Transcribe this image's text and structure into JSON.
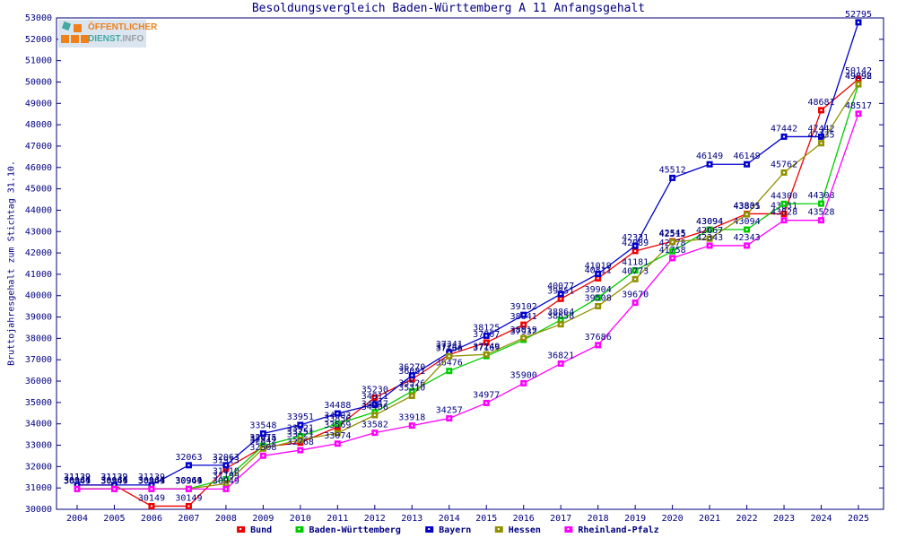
{
  "title": "Besoldungsvergleich Baden-Württemberg A 11 Anfangsgehalt",
  "y_axis_title": "Bruttojahresgehalt zum Stichtag 31.10.",
  "logo": {
    "line1": "ÖFFENTLICHER",
    "line2_main": "DIENST",
    "line2_suffix": ".INFO",
    "orange": "#f08019",
    "teal": "#45a8a2"
  },
  "colors": {
    "axis": "#000080",
    "label_text": "#000080",
    "background": "#ffffff"
  },
  "chart_data": {
    "type": "line",
    "x": [
      2004,
      2005,
      2006,
      2007,
      2008,
      2009,
      2010,
      2011,
      2012,
      2013,
      2014,
      2015,
      2016,
      2017,
      2018,
      2019,
      2020,
      2021,
      2022,
      2023,
      2024,
      2025
    ],
    "ylim": [
      30000,
      53000
    ],
    "ytick_step": 1000,
    "grid": false,
    "legend_position": "bottom",
    "series": [
      {
        "name": "Bund",
        "color": "#ee0000",
        "values": [
          31132,
          31132,
          30149,
          30149,
          31913,
          32914,
          33121,
          33856,
          35230,
          36081,
          37241,
          37807,
          38641,
          39851,
          40811,
          42089,
          42545,
          43094,
          43831,
          43831,
          48681,
          50142
        ]
      },
      {
        "name": "Baden-Württemberg",
        "color": "#00cc00",
        "values": [
          30964,
          30964,
          30964,
          30964,
          31410,
          32975,
          33421,
          34003,
          34547,
          35526,
          36476,
          37169,
          37932,
          38864,
          39904,
          41181,
          42078,
          43094,
          43094,
          44300,
          44308,
          49892
        ]
      },
      {
        "name": "Bayern",
        "color": "#0000cc",
        "values": [
          31139,
          31139,
          31139,
          32063,
          32063,
          33548,
          33951,
          34488,
          34911,
          36270,
          37341,
          38125,
          39102,
          40077,
          41019,
          42331,
          45512,
          46149,
          46149,
          47442,
          47442,
          52795
        ]
      },
      {
        "name": "Hessen",
        "color": "#919100",
        "values": [
          30961,
          30961,
          30961,
          30961,
          31199,
          32842,
          33251,
          33569,
          34406,
          35310,
          37166,
          37249,
          38019,
          38658,
          39508,
          40773,
          42515,
          42667,
          43805,
          45762,
          47135,
          49898
        ]
      },
      {
        "name": "Rheinland-Pfalz",
        "color": "#ff00ff",
        "values": [
          30949,
          30949,
          30949,
          30949,
          30949,
          32508,
          32768,
          33074,
          33582,
          33918,
          34257,
          34977,
          35900,
          36821,
          37686,
          39670,
          41758,
          42343,
          42343,
          43528,
          43528,
          48517
        ]
      }
    ]
  }
}
